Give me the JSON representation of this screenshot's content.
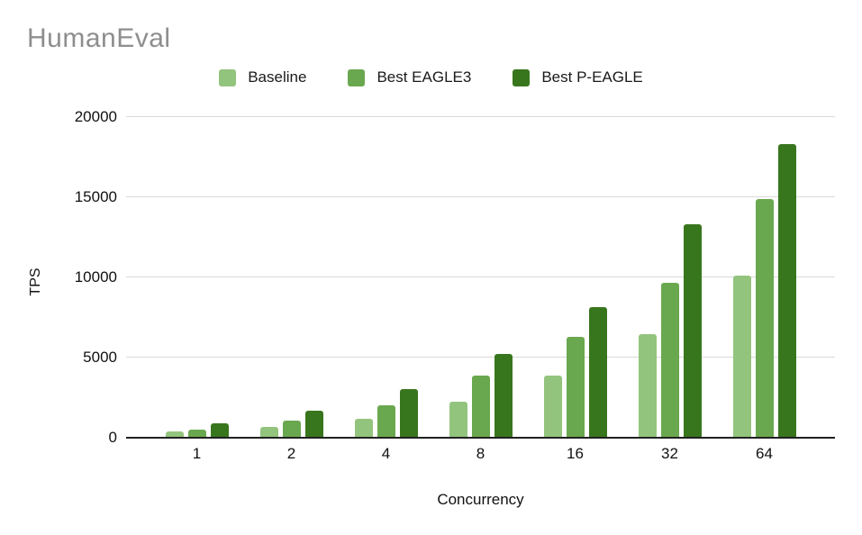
{
  "page": {
    "background": "#ffffff"
  },
  "chart_data": {
    "type": "bar",
    "title": "HumanEval",
    "title_color": "#8e8e8e",
    "categories": [
      "1",
      "2",
      "4",
      "8",
      "16",
      "32",
      "64"
    ],
    "series": [
      {
        "name": "Baseline",
        "color": "#93c47d",
        "values": [
          400,
          700,
          1200,
          2250,
          3900,
          6450,
          10100
        ]
      },
      {
        "name": "Best EAGLE3",
        "color": "#6aa84f",
        "values": [
          500,
          1050,
          2050,
          3900,
          6300,
          9650,
          14900
        ]
      },
      {
        "name": "Best P-EAGLE",
        "color": "#38761d",
        "values": [
          900,
          1700,
          3050,
          5250,
          8150,
          13300,
          18300
        ]
      }
    ],
    "xlabel": "Concurrency",
    "ylabel": "TPS",
    "ylim": [
      0,
      20000
    ],
    "yticks": [
      0,
      5000,
      10000,
      15000,
      20000
    ],
    "legend_position": "top-center",
    "grid": true,
    "grid_color": "#dadada",
    "axis_color": "#212121",
    "text_color": "#111111"
  }
}
